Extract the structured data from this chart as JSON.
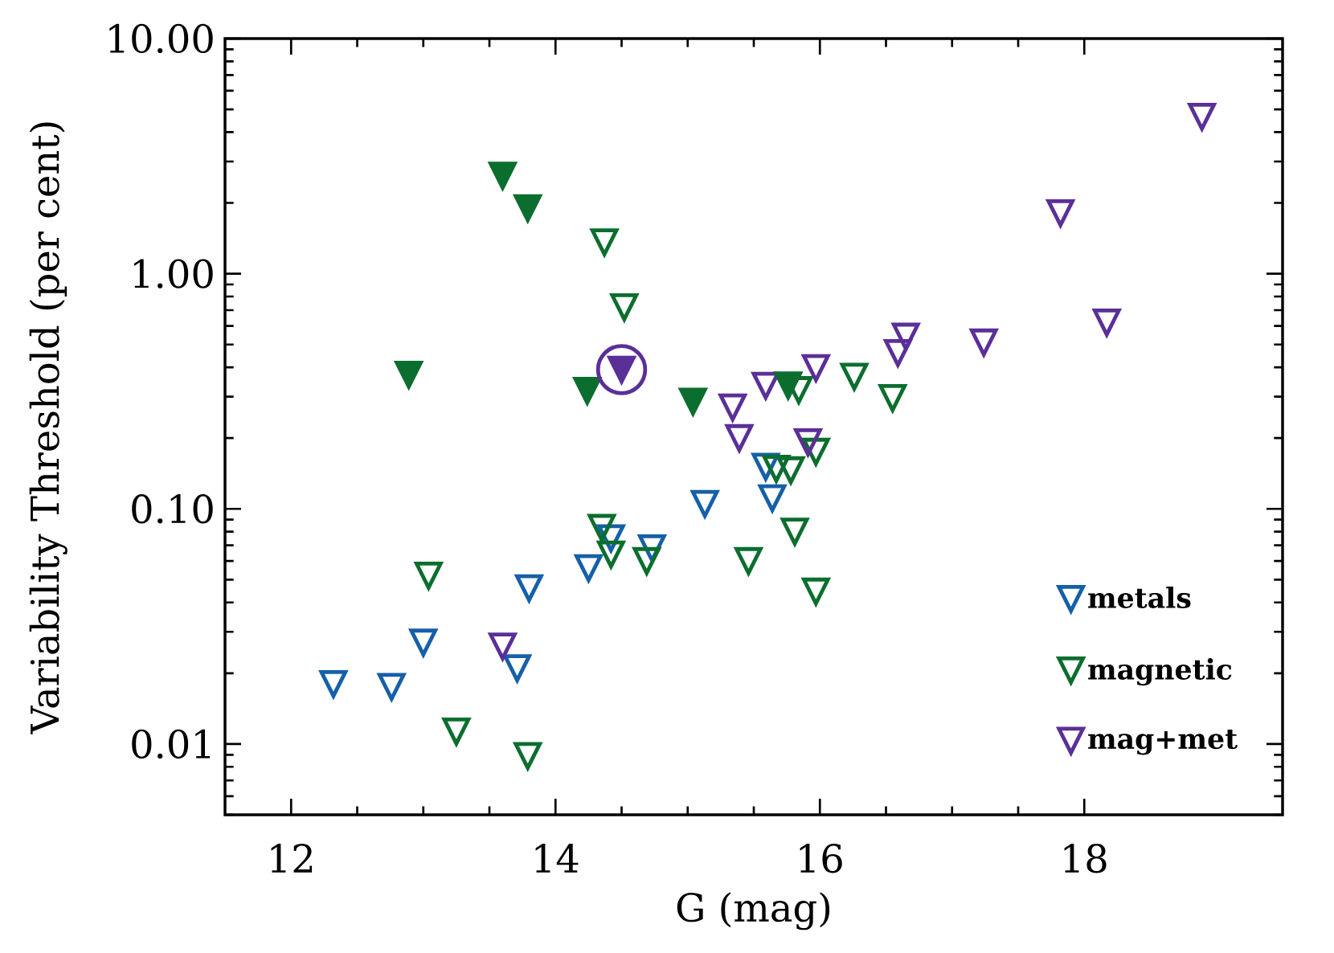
{
  "chart_data": {
    "type": "scatter",
    "xlabel": "G (mag)",
    "ylabel": "Variability Threshold (per cent)",
    "xlim": [
      11.5,
      19.5
    ],
    "ylim": [
      0.005,
      10
    ],
    "xticks": [
      12,
      14,
      16,
      18
    ],
    "yticks": [
      0.01,
      {
        "value": 0.1,
        "label": "0.10"
      },
      {
        "value": 1,
        "label": "1.00"
      },
      {
        "value": 10,
        "label": "10.00"
      }
    ],
    "log": "y",
    "marker": "triangle",
    "legend": "bottom right",
    "series": [
      {
        "name": "metals",
        "color": "#1560a8",
        "x": [
          12.32,
          12.76,
          13.0,
          13.71,
          13.8,
          14.25,
          14.42,
          14.73,
          15.13,
          15.59,
          15.64
        ],
        "values": [
          0.018,
          0.0175,
          0.027,
          0.021,
          0.046,
          0.056,
          0.075,
          0.068,
          0.105,
          0.151,
          0.111
        ]
      },
      {
        "name": "magnetic",
        "color": "#0b6e2e",
        "x": [
          13.04,
          13.25,
          13.79,
          14.35,
          14.37,
          14.42,
          14.52,
          14.69,
          15.46,
          15.67,
          15.78,
          15.81,
          15.84,
          15.97,
          15.97,
          16.26,
          16.55
        ],
        "values": [
          0.052,
          0.0113,
          0.0089,
          0.083,
          1.36,
          0.064,
          0.72,
          0.06,
          0.06,
          0.148,
          0.146,
          0.08,
          0.32,
          0.175,
          0.0445,
          0.365,
          0.296
        ]
      },
      {
        "name": "mag+met",
        "color": "#5b2f98",
        "x": [
          13.6,
          15.34,
          15.39,
          15.59,
          15.91,
          15.97,
          16.59,
          16.65,
          17.24,
          17.82,
          18.17,
          18.89
        ],
        "values": [
          0.026,
          0.27,
          0.2,
          0.334,
          0.192,
          0.397,
          0.46,
          0.54,
          0.51,
          1.81,
          0.62,
          4.65
        ]
      },
      {
        "color": "#0b6e2e",
        "x": [
          12.89,
          13.6,
          13.79,
          14.24,
          15.04,
          15.76
        ],
        "values": [
          0.372,
          2.61,
          1.9,
          0.318,
          0.286,
          0.335
        ]
      },
      {
        "color": "#5b2f98",
        "marker": "circle",
        "x": [
          14.5
        ],
        "values": [
          0.391
        ]
      },
      {
        "color": "#5b2f98",
        "x": [
          14.5
        ],
        "values": [
          0.391
        ]
      }
    ]
  }
}
